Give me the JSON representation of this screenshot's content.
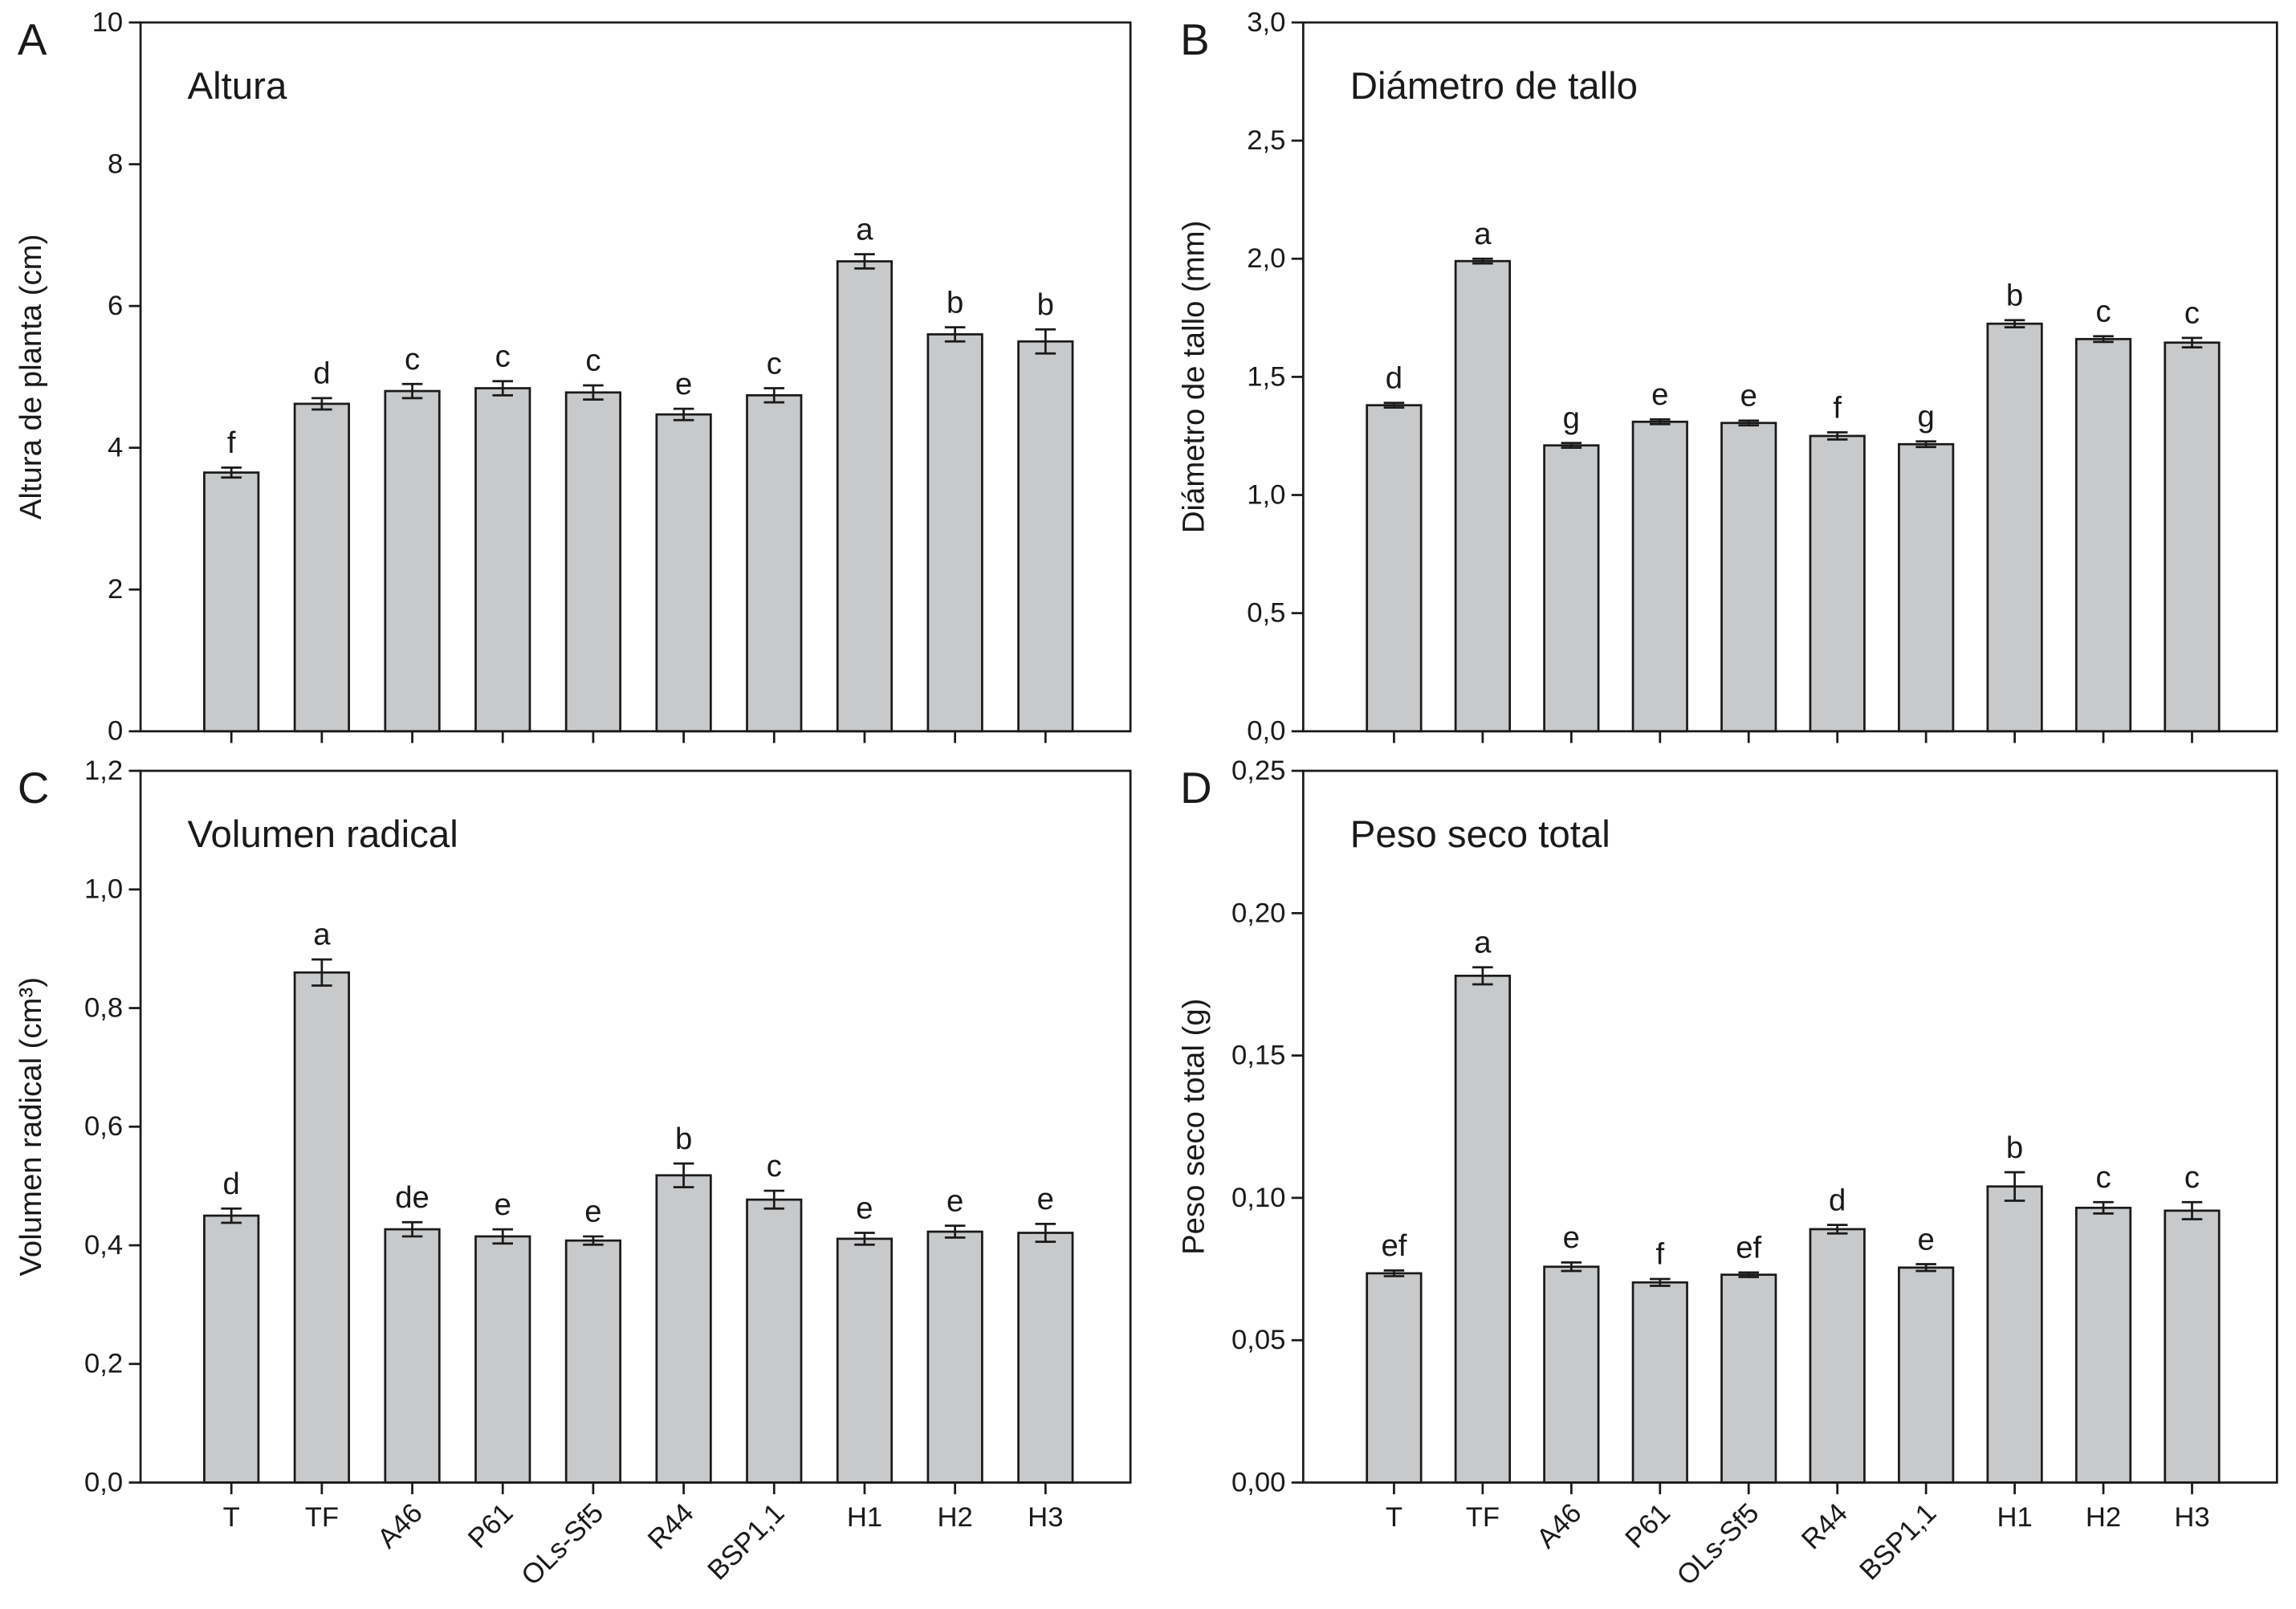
{
  "chart_data": [
    {
      "type": "bar",
      "panel": "A",
      "title": "Altura",
      "y_label": "Altura de planta (cm)",
      "categories": [
        null,
        null,
        null,
        null,
        null,
        null,
        null,
        null,
        null,
        null
      ],
      "values": [
        3.65,
        4.62,
        4.8,
        4.84,
        4.78,
        4.47,
        4.74,
        6.63,
        5.6,
        5.5
      ],
      "errors": [
        0.07,
        0.08,
        0.1,
        0.1,
        0.1,
        0.08,
        0.1,
        0.1,
        0.1,
        0.17
      ],
      "annotations": [
        "f",
        "d",
        "c",
        "c",
        "c",
        "e",
        "c",
        "a",
        "b",
        "b"
      ],
      "color": "#c8c9cb",
      "ylim": [
        0,
        10
      ],
      "yticks": [
        0,
        2,
        4,
        6,
        8,
        10
      ]
    },
    {
      "type": "bar",
      "panel": "B",
      "title": "Diámetro de tallo",
      "y_label": "Diámetro de tallo (mm)",
      "categories": [
        null,
        null,
        null,
        null,
        null,
        null,
        null,
        null,
        null,
        null
      ],
      "values": [
        1.38,
        1.99,
        1.21,
        1.31,
        1.305,
        1.25,
        1.215,
        1.725,
        1.66,
        1.645
      ],
      "errors": [
        0.01,
        0.01,
        0.01,
        0.01,
        0.01,
        0.015,
        0.012,
        0.015,
        0.012,
        0.02
      ],
      "annotations": [
        "d",
        "a",
        "g",
        "e",
        "e",
        "f",
        "g",
        "b",
        "c",
        "c"
      ],
      "color": "#c8c9cb",
      "ylim": [
        0,
        3
      ],
      "yticks": [
        {
          "value": 0,
          "label": "0,0"
        },
        {
          "value": 0.5,
          "label": "0,5"
        },
        {
          "value": 1,
          "label": "1,0"
        },
        {
          "value": 1.5,
          "label": "1,5"
        },
        {
          "value": 2,
          "label": "2,0"
        },
        {
          "value": 2.5,
          "label": "2,5"
        },
        {
          "value": 3,
          "label": "3,0"
        }
      ]
    },
    {
      "type": "bar",
      "panel": "C",
      "title": "Volumen radical",
      "y_label": "Volumen radical (cm³)",
      "categories": [
        "T",
        "TF",
        "A46",
        "P61",
        "OLs-Sf5",
        "R44",
        "BSP1,1",
        "H1",
        "H2",
        "H3"
      ],
      "values": [
        0.45,
        0.86,
        0.427,
        0.415,
        0.408,
        0.518,
        0.477,
        0.411,
        0.423,
        0.421
      ],
      "errors": [
        0.012,
        0.022,
        0.012,
        0.012,
        0.007,
        0.02,
        0.015,
        0.01,
        0.01,
        0.015
      ],
      "annotations": [
        "d",
        "a",
        "de",
        "e",
        "e",
        "b",
        "c",
        "e",
        "e",
        "e"
      ],
      "color": "#c8c9cb",
      "ylim": [
        0,
        1.2
      ],
      "yticks": [
        {
          "value": 0,
          "label": "0,0"
        },
        {
          "value": 0.2,
          "label": "0,2"
        },
        {
          "value": 0.4,
          "label": "0,4"
        },
        {
          "value": 0.6,
          "label": "0,6"
        },
        {
          "value": 0.8,
          "label": "0,8"
        },
        {
          "value": 1,
          "label": "1,0"
        },
        {
          "value": 1.2,
          "label": "1,2"
        }
      ]
    },
    {
      "type": "bar",
      "panel": "D",
      "title": "Peso seco total",
      "y_label": "Peso seco total (g)",
      "categories": [
        "T",
        "TF",
        "A46",
        "P61",
        "OLs-Sf5",
        "R44",
        "BSP1,1",
        "H1",
        "H2",
        "H3"
      ],
      "values": [
        0.0735,
        0.178,
        0.0758,
        0.0703,
        0.073,
        0.089,
        0.0755,
        0.104,
        0.0965,
        0.0955
      ],
      "errors": [
        0.001,
        0.003,
        0.0015,
        0.0012,
        0.0008,
        0.0015,
        0.0012,
        0.005,
        0.002,
        0.003
      ],
      "annotations": [
        "ef",
        "a",
        "e",
        "f",
        "ef",
        "d",
        "e",
        "b",
        "c",
        "c"
      ],
      "color": "#c8c9cb",
      "ylim": [
        0,
        0.25
      ],
      "yticks": [
        {
          "value": 0,
          "label": "0,00"
        },
        {
          "value": 0.05,
          "label": "0,05"
        },
        {
          "value": 0.1,
          "label": "0,10"
        },
        {
          "value": 0.15,
          "label": "0,15"
        },
        {
          "value": 0.2,
          "label": "0,20"
        },
        {
          "value": 0.25,
          "label": "0,25"
        }
      ]
    }
  ]
}
